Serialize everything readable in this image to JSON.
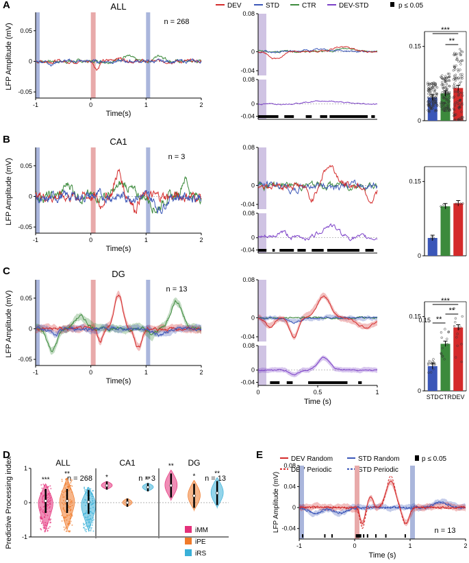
{
  "colors": {
    "dev": "#d42a2a",
    "std": "#3a56b8",
    "ctr": "#3c8a3c",
    "devstd": "#7a3fc7",
    "shade_std": "#aab6dc",
    "shade_dev": "#e8aaaa",
    "imm": "#e4307a",
    "ipe": "#f07a2a",
    "irs": "#3ab0d8"
  },
  "legend_top": {
    "dev": "DEV",
    "std": "STD",
    "ctr": "CTR",
    "devstd": "DEV-STD",
    "sig": "p ≤ 0.05"
  },
  "panels": {
    "A": {
      "letter": "A",
      "title": "ALL",
      "n": "n = 268",
      "bar_sig": [
        "***",
        "**"
      ]
    },
    "B": {
      "letter": "B",
      "title": "CA1",
      "n": "n = 3"
    },
    "C": {
      "letter": "C",
      "title": "DG",
      "n": "n = 13",
      "bar_sig": [
        "***",
        "**",
        "**"
      ]
    },
    "D": {
      "letter": "D",
      "ylabel": "Predictive Processing index",
      "yticks": [
        "1",
        "0",
        "-1"
      ],
      "groups": [
        {
          "title": "ALL",
          "n": "n = 268",
          "stars": [
            "***",
            "**",
            ""
          ]
        },
        {
          "title": "CA1",
          "n": "n = 3",
          "stars": [
            "*",
            "",
            "**"
          ]
        },
        {
          "title": "DG",
          "n": "n = 13",
          "stars": [
            "**",
            "*",
            "**"
          ]
        }
      ],
      "legend": [
        "iMM",
        "iPE",
        "iRS"
      ]
    },
    "E": {
      "letter": "E",
      "ylabel": "LFP Amplitude (mV)",
      "xlabel": "Time (s)",
      "n": "n = 13",
      "legend": {
        "dev_random": "DEV Random",
        "std_random": "STD Random",
        "dev_periodic": "DEV Periodic",
        "std_periodic": "STD Periodic",
        "sig": "p ≤ 0.05"
      },
      "yticks": [
        "0.08",
        "0.04",
        "0",
        "-0.04"
      ],
      "xticks": [
        "-1",
        "0",
        "1",
        "2"
      ]
    }
  },
  "axes_text": {
    "lfp_ylabel": "LFP Amplitude (mV)",
    "time_xlabel": "Time(s)",
    "time_xlabel_mid": "Time (s)",
    "left_yticks": [
      "0.05",
      "0",
      "-0.05"
    ],
    "left_xticks": [
      "-1",
      "0",
      "1",
      "2"
    ],
    "mid_yticks_top": [
      "0.08",
      "0",
      "-0.04"
    ],
    "mid_yticks_bottom": [
      "0.08",
      "0",
      "-0.04"
    ],
    "mid_xticks": [
      "0",
      "0.5",
      "1"
    ],
    "bar_yticks": [
      "0.15",
      "0"
    ],
    "bar_categories": [
      "STD",
      "CTR",
      "DEV"
    ]
  },
  "chart_data": [
    {
      "type": "line",
      "panel": "A-left",
      "title": "ALL",
      "xlabel": "Time(s)",
      "ylabel": "LFP Amplitude (mV)",
      "xlim": [
        -1,
        2
      ],
      "ylim": [
        -0.06,
        0.08
      ],
      "series": [
        "DEV",
        "STD",
        "CTR"
      ],
      "stimulus_windows": [
        -1,
        0,
        1
      ]
    },
    {
      "type": "line",
      "panel": "A-mid",
      "xlim": [
        0,
        1
      ],
      "ylim": [
        -0.04,
        0.08
      ],
      "series": [
        "DEV",
        "STD",
        "CTR",
        "DEV-STD"
      ],
      "sig_windows": [
        [
          0.0,
          0.17
        ],
        [
          0.22,
          0.3
        ],
        [
          0.52,
          0.58
        ],
        [
          0.6,
          0.92
        ],
        [
          0.95,
          0.98
        ]
      ]
    },
    {
      "type": "bar",
      "panel": "A-right",
      "categories": [
        "STD",
        "CTR",
        "DEV"
      ],
      "values": [
        0.047,
        0.055,
        0.066
      ],
      "ylim": [
        0,
        0.18
      ]
    },
    {
      "type": "line",
      "panel": "B-left",
      "title": "CA1",
      "n": 3,
      "xlim": [
        -1,
        2
      ],
      "ylim": [
        -0.06,
        0.08
      ],
      "series": [
        "DEV",
        "STD",
        "CTR"
      ]
    },
    {
      "type": "line",
      "panel": "B-mid",
      "xlim": [
        0,
        1
      ],
      "ylim": [
        -0.04,
        0.08
      ],
      "series": [
        "DEV",
        "STD",
        "CTR",
        "DEV-STD"
      ]
    },
    {
      "type": "bar",
      "panel": "B-right",
      "categories": [
        "STD",
        "CTR",
        "DEV"
      ],
      "values": [
        0.036,
        0.1,
        0.106
      ],
      "ylim": [
        0,
        0.18
      ]
    },
    {
      "type": "line",
      "panel": "C-left",
      "title": "DG",
      "n": 13,
      "xlim": [
        -1,
        2
      ],
      "ylim": [
        -0.06,
        0.08
      ],
      "series": [
        "DEV",
        "STD",
        "CTR"
      ]
    },
    {
      "type": "line",
      "panel": "C-mid",
      "xlim": [
        0,
        1
      ],
      "ylim": [
        -0.04,
        0.08
      ],
      "series": [
        "DEV",
        "STD",
        "CTR",
        "DEV-STD"
      ],
      "sig_windows": [
        [
          0.1,
          0.18
        ],
        [
          0.24,
          0.28
        ],
        [
          0.42,
          0.75
        ],
        [
          0.84,
          0.87
        ]
      ]
    },
    {
      "type": "bar",
      "panel": "C-right",
      "categories": [
        "STD",
        "CTR",
        "DEV"
      ],
      "values": [
        0.05,
        0.095,
        0.128
      ],
      "ylim": [
        0,
        0.18
      ]
    },
    {
      "type": "violin",
      "panel": "D",
      "groups": [
        "ALL",
        "CA1",
        "DG"
      ],
      "series": [
        "iMM",
        "iPE",
        "iRS"
      ],
      "medians": [
        [
          0.05,
          0.05,
          0.02
        ],
        [
          0.5,
          0.0,
          0.45
        ],
        [
          0.5,
          0.2,
          0.28
        ]
      ],
      "ylim": [
        -1,
        1
      ]
    },
    {
      "type": "line",
      "panel": "E",
      "xlim": [
        -1,
        2
      ],
      "ylim": [
        -0.06,
        0.08
      ],
      "series": [
        "DEV Random",
        "DEV Periodic",
        "STD Random",
        "STD Periodic"
      ],
      "n": 13
    }
  ]
}
